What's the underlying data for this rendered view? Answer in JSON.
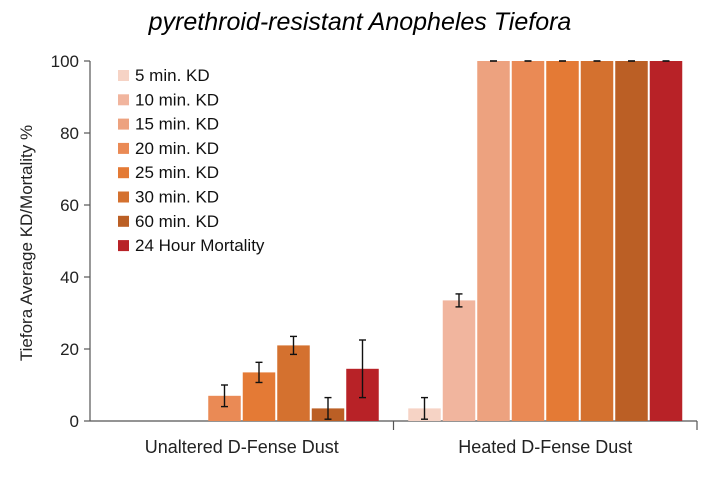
{
  "chart_data": {
    "type": "bar",
    "title": "pyrethroid-resistant Anopheles Tiefora",
    "xlabel": "",
    "ylabel": "Tiefora Average KD/Mortality %",
    "ylim": [
      0,
      100
    ],
    "yticks": [
      0,
      20,
      40,
      60,
      80,
      100
    ],
    "grid": false,
    "legend_position": "top-left",
    "categories": [
      "Unaltered D-Fense Dust",
      "Heated D-Fense Dust"
    ],
    "series": [
      {
        "name": "5 min. KD",
        "color": "#f6d3c5",
        "values": [
          0,
          3.5
        ],
        "errors": [
          0,
          3
        ]
      },
      {
        "name": "10 min. KD",
        "color": "#f1b59e",
        "values": [
          0,
          33.5
        ],
        "errors": [
          0,
          1.8
        ]
      },
      {
        "name": "15 min. KD",
        "color": "#eda27f",
        "values": [
          0,
          100
        ],
        "errors": [
          0,
          0
        ]
      },
      {
        "name": "20 min. KD",
        "color": "#ea8a55",
        "values": [
          7,
          100
        ],
        "errors": [
          3,
          0
        ]
      },
      {
        "name": "25 min. KD",
        "color": "#e47a35",
        "values": [
          13.5,
          100
        ],
        "errors": [
          2.8,
          0
        ]
      },
      {
        "name": "30 min. KD",
        "color": "#d4712f",
        "values": [
          21,
          100
        ],
        "errors": [
          2.5,
          0
        ]
      },
      {
        "name": "60 min. KD",
        "color": "#bb5f25",
        "values": [
          3.5,
          100
        ],
        "errors": [
          3,
          0
        ]
      },
      {
        "name": "24 Hour Mortality",
        "color": "#b82227",
        "values": [
          14.5,
          100
        ],
        "errors": [
          8,
          0
        ]
      }
    ]
  }
}
